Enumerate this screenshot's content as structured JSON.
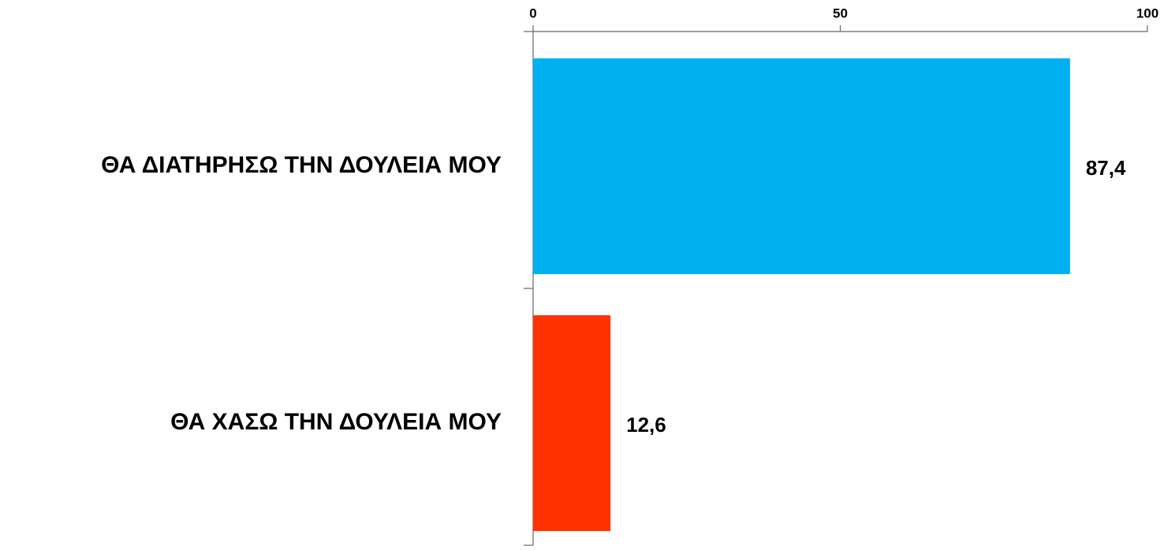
{
  "chart_data": {
    "type": "bar",
    "orientation": "horizontal",
    "categories": [
      "ΘΑ ΔΙΑΤΗΡΗΣΩ ΤΗΝ ΔΟΥΛΕΙΑ ΜΟΥ",
      "ΘΑ ΧΑΣΩ ΤΗΝ ΔΟΥΛΕΙΑ ΜΟΥ"
    ],
    "values": [
      87.4,
      12.6
    ],
    "value_labels": [
      "87,4",
      "12,6"
    ],
    "colors": [
      "#00b0f0",
      "#ff3300"
    ],
    "xlim": [
      0,
      100
    ],
    "xticks": [
      0,
      50,
      100
    ],
    "grid": false
  }
}
